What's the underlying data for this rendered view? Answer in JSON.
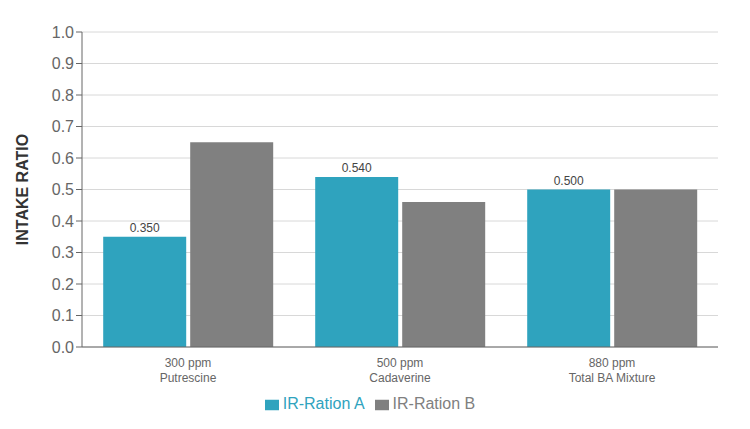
{
  "chart_data": {
    "type": "bar",
    "categories": [
      "300 ppm\nPutrescine",
      "500 ppm\nCadaverine",
      "880 ppm\nTotal BA Mixture"
    ],
    "series": [
      {
        "name": "IR-Ration A",
        "color": "#2fa3be",
        "values": [
          0.35,
          0.54,
          0.5
        ],
        "value_labels": [
          "0.350",
          "0.540",
          "0.500"
        ]
      },
      {
        "name": "IR-Ration B",
        "color": "#808080",
        "values": [
          0.65,
          0.46,
          0.5
        ]
      }
    ],
    "ylabel": "INTAKE RATIO",
    "ylim": [
      0.0,
      1.0
    ],
    "yticks": [
      {
        "value": 0.0,
        "label": "0.0"
      },
      0.1,
      0.2,
      0.3,
      0.4,
      0.5,
      0.6,
      0.7,
      0.8,
      0.9,
      {
        "value": 1.0,
        "label": "1.0"
      }
    ],
    "grid": true,
    "legend": "bottom"
  }
}
